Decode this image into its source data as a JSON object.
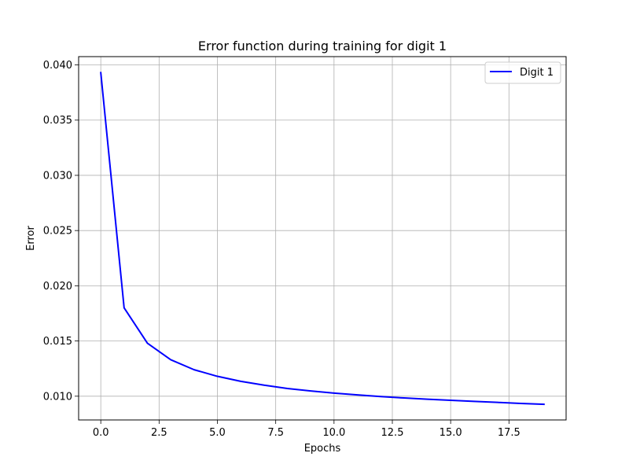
{
  "chart_data": {
    "type": "line",
    "title": "Error function during training for digit 1",
    "xlabel": "Epochs",
    "ylabel": "Error",
    "xlim": [
      -0.95,
      19.95
    ],
    "ylim": [
      0.00785,
      0.04075
    ],
    "xticks": [
      0.0,
      2.5,
      5.0,
      7.5,
      10.0,
      12.5,
      15.0,
      17.5
    ],
    "xtick_labels": [
      "0.0",
      "2.5",
      "5.0",
      "7.5",
      "10.0",
      "12.5",
      "15.0",
      "17.5"
    ],
    "yticks": [
      0.01,
      0.015,
      0.02,
      0.025,
      0.03,
      0.035,
      0.04
    ],
    "ytick_labels": [
      "0.010",
      "0.015",
      "0.020",
      "0.025",
      "0.030",
      "0.035",
      "0.040"
    ],
    "grid": true,
    "legend_position": "top-right",
    "series": [
      {
        "name": "Digit 1",
        "color": "#0000ff",
        "x": [
          0,
          1,
          2,
          3,
          4,
          5,
          6,
          7,
          8,
          9,
          10,
          11,
          12,
          13,
          14,
          15,
          16,
          17,
          18,
          19
        ],
        "y": [
          0.0393,
          0.018,
          0.0148,
          0.0133,
          0.0124,
          0.0118,
          0.01135,
          0.011,
          0.0107,
          0.01048,
          0.01028,
          0.01012,
          0.00997,
          0.00984,
          0.00973,
          0.00963,
          0.00953,
          0.00944,
          0.00935,
          0.00927
        ]
      }
    ]
  }
}
